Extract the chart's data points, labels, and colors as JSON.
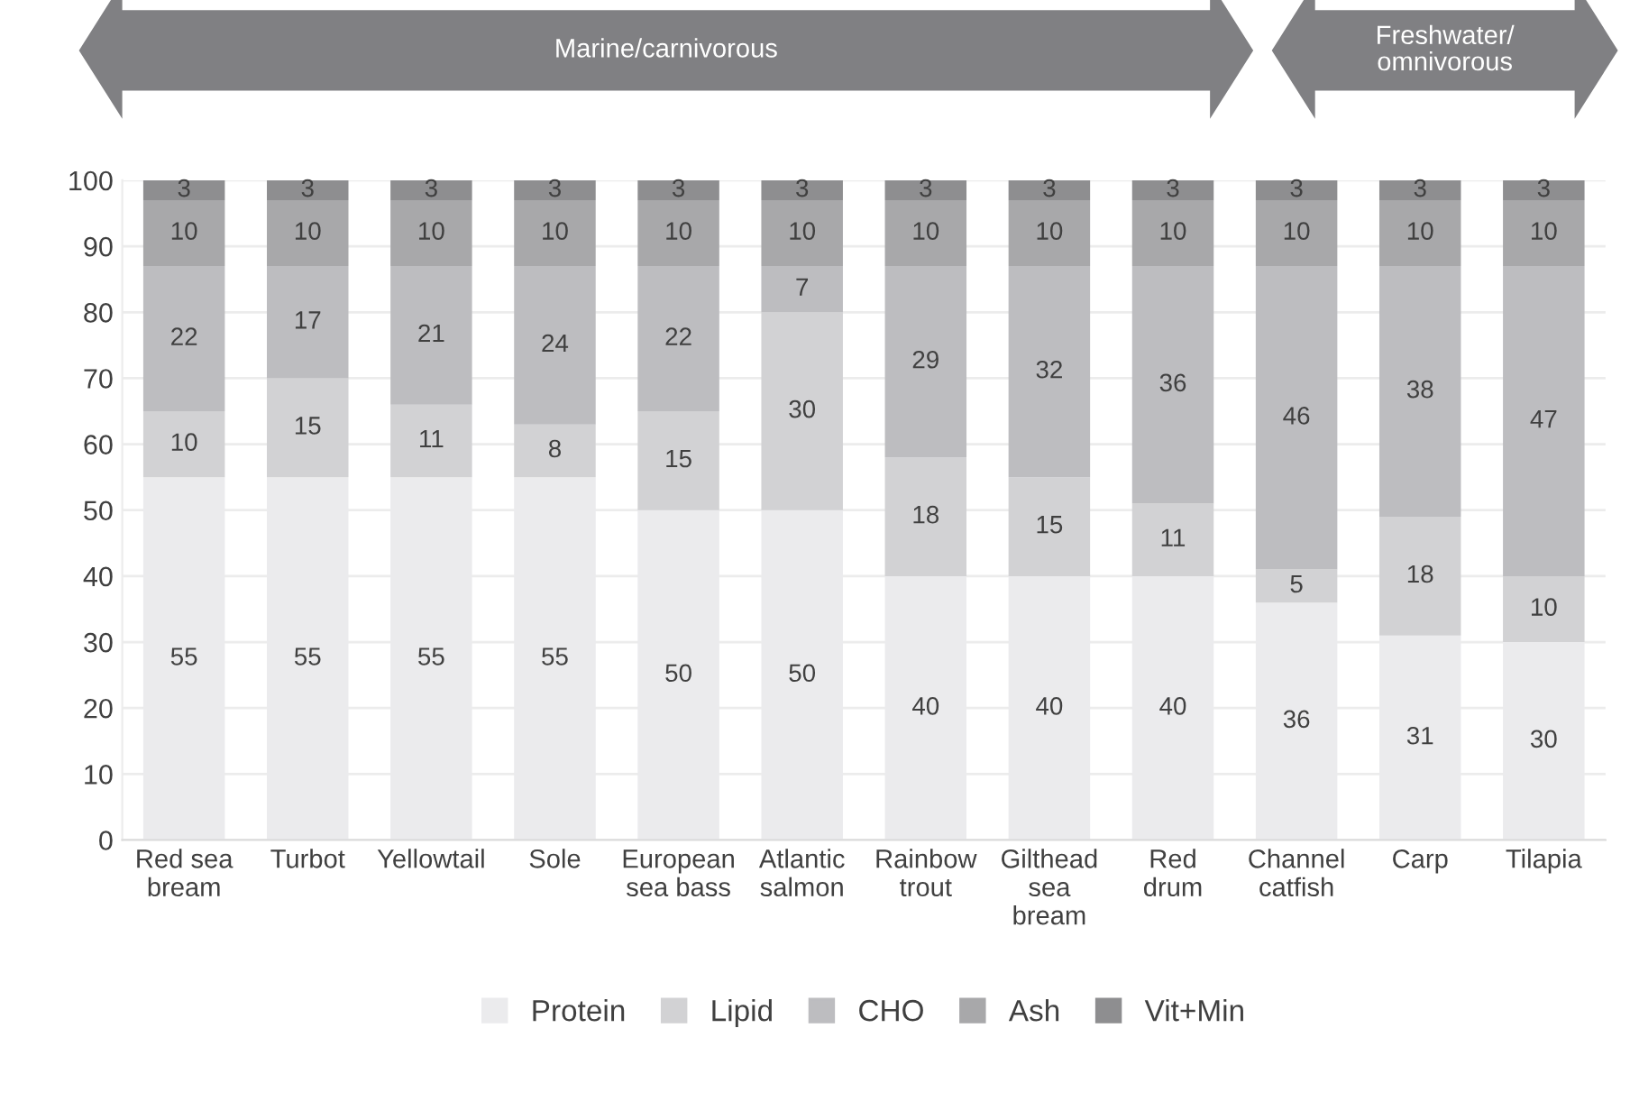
{
  "chart_data": {
    "type": "bar",
    "stacked": true,
    "categories": [
      "Red sea\nbream",
      "Turbot",
      "Yellowtail",
      "Sole",
      "European\nsea bass",
      "Atlantic\nsalmon",
      "Rainbow\ntrout",
      "Gilthead\nsea\nbream",
      "Red\ndrum",
      "Channel\ncatfish",
      "Carp",
      "Tilapia"
    ],
    "series": [
      {
        "name": "Protein",
        "color": "#ebebed",
        "values": [
          55,
          55,
          55,
          55,
          50,
          50,
          40,
          40,
          40,
          36,
          31,
          30
        ]
      },
      {
        "name": "Lipid",
        "color": "#d2d2d4",
        "values": [
          10,
          15,
          11,
          8,
          15,
          30,
          18,
          15,
          11,
          5,
          18,
          10
        ]
      },
      {
        "name": "CHO",
        "color": "#bdbdc0",
        "values": [
          22,
          17,
          21,
          24,
          22,
          7,
          29,
          32,
          36,
          46,
          38,
          47
        ]
      },
      {
        "name": "Ash",
        "color": "#a8a8aa",
        "values": [
          10,
          10,
          10,
          10,
          10,
          10,
          10,
          10,
          10,
          10,
          10,
          10
        ]
      },
      {
        "name": "Vit+Min",
        "color": "#8e8e90",
        "values": [
          3,
          3,
          3,
          3,
          3,
          3,
          3,
          3,
          3,
          3,
          3,
          3
        ]
      }
    ],
    "ylim": [
      0,
      100
    ],
    "yticks": [
      0,
      10,
      20,
      30,
      40,
      50,
      60,
      70,
      80,
      90,
      100
    ],
    "grid": "y",
    "legend": "bottom",
    "data_labels": true,
    "annotations": [
      "Marine/carnivorous",
      "Freshwater/\nomnivorous"
    ]
  }
}
